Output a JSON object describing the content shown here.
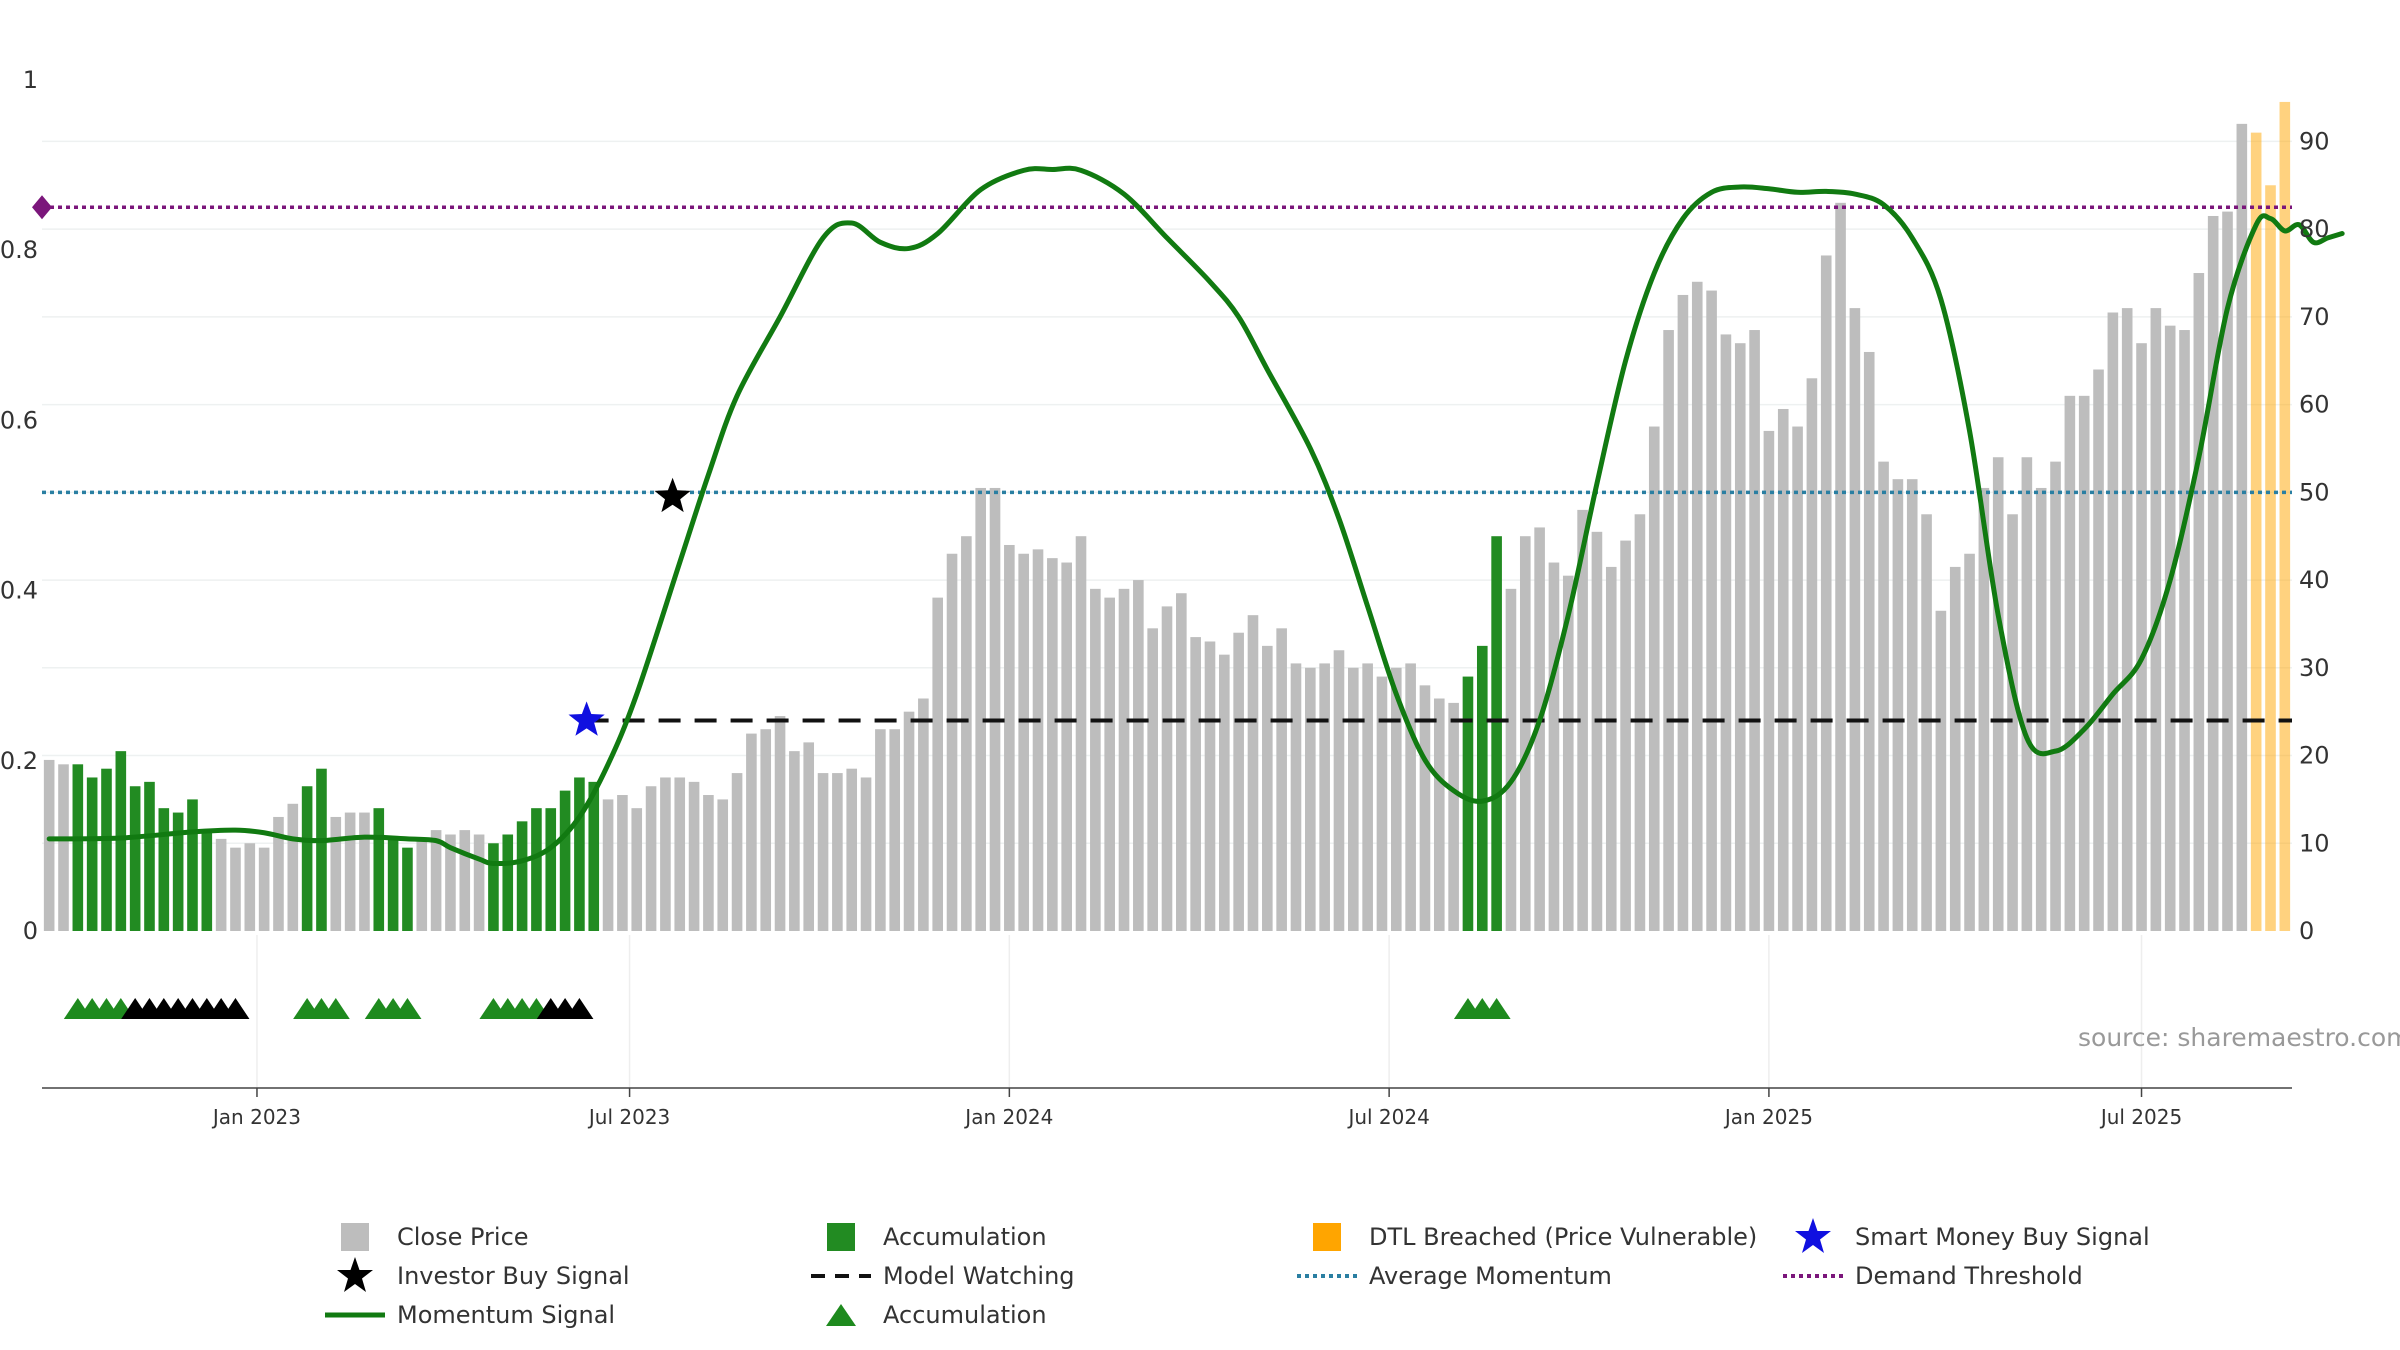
{
  "chart_data": {
    "type": "bar+line",
    "source_text": "source: sharemaestro.com",
    "x_ticks": [
      "Jan 2023",
      "Jul 2023",
      "Jan 2024",
      "Jul 2024",
      "Jan 2025",
      "Jul 2025"
    ],
    "left_axis": {
      "ylim": [
        0,
        1
      ],
      "ticks": [
        "0",
        "0.2",
        "0.4",
        "0.6",
        "0.8",
        "1"
      ]
    },
    "right_axis": {
      "ylim": [
        0,
        97
      ],
      "ticks": [
        "0",
        "10",
        "20",
        "30",
        "40",
        "50",
        "60",
        "70",
        "80",
        "90"
      ]
    },
    "close_price": [
      19.5,
      19,
      19,
      17.5,
      18.5,
      20.5,
      16.5,
      17,
      14,
      13.5,
      15,
      11.5,
      10.5,
      9.5,
      10,
      9.5,
      13,
      14.5,
      16.5,
      18.5,
      13,
      13.5,
      13.5,
      14,
      10.5,
      9.5,
      10.5,
      11.5,
      11,
      11.5,
      11,
      10,
      11,
      12.5,
      14,
      14,
      16,
      17.5,
      17,
      15,
      15.5,
      14,
      16.5,
      17.5,
      17.5,
      17,
      15.5,
      15,
      18,
      22.5,
      23,
      24.5,
      20.5,
      21.5,
      18,
      18,
      18.5,
      17.5,
      23,
      23,
      25,
      26.5,
      38,
      43,
      45,
      50.5,
      50.5,
      44,
      43,
      43.5,
      42.5,
      42,
      45,
      39,
      38,
      39,
      40,
      34.5,
      37,
      38.5,
      33.5,
      33,
      31.5,
      34,
      36,
      32.5,
      34.5,
      30.5,
      30,
      30.5,
      32,
      30,
      30.5,
      29,
      30,
      30.5,
      28,
      26.5,
      26,
      29,
      32.5,
      45,
      39,
      45,
      46,
      42,
      40.5,
      48,
      45.5,
      41.5,
      44.5,
      47.5,
      57.5,
      68.5,
      72.5,
      74,
      73,
      68,
      67,
      68.5,
      57,
      59.5,
      57.5,
      63,
      77,
      83,
      71,
      66,
      53.5,
      51.5,
      51.5,
      47.5,
      36.5,
      41.5,
      43,
      50.5,
      54,
      47.5,
      54,
      50.5,
      53.5,
      61,
      61,
      64,
      70.5,
      71,
      67,
      71,
      69,
      68.5,
      75,
      81.5,
      82,
      92,
      91,
      85,
      94.5
    ],
    "accumulation_ranges": [
      [
        2,
        11
      ],
      [
        18,
        19
      ],
      [
        23,
        25
      ],
      [
        31,
        38
      ],
      [
        99,
        101
      ]
    ],
    "dtl_breached_range": [
      154,
      157
    ],
    "momentum_signal": [
      [
        0,
        10.5
      ],
      [
        5,
        10.6
      ],
      [
        10,
        11.3
      ],
      [
        13,
        11.5
      ],
      [
        15,
        11.2
      ],
      [
        17,
        10.5
      ],
      [
        19,
        10.3
      ],
      [
        22,
        10.7
      ],
      [
        25,
        10.5
      ],
      [
        27,
        10.3
      ],
      [
        28,
        9.5
      ],
      [
        30,
        8.2
      ],
      [
        31,
        7.7
      ],
      [
        33,
        8
      ],
      [
        35,
        9.5
      ],
      [
        37,
        13
      ],
      [
        39,
        19
      ],
      [
        41,
        27
      ],
      [
        44,
        42
      ],
      [
        46,
        52
      ],
      [
        48,
        61
      ],
      [
        51,
        70
      ],
      [
        54,
        79
      ],
      [
        56,
        80.7
      ],
      [
        58,
        78.5
      ],
      [
        60,
        77.8
      ],
      [
        62,
        79.5
      ],
      [
        65,
        84.5
      ],
      [
        68,
        86.7
      ],
      [
        70,
        86.8
      ],
      [
        72,
        86.7
      ],
      [
        75,
        84
      ],
      [
        78,
        79
      ],
      [
        81,
        74
      ],
      [
        83,
        70
      ],
      [
        85,
        64
      ],
      [
        88,
        55
      ],
      [
        90,
        47
      ],
      [
        92,
        37
      ],
      [
        94,
        27
      ],
      [
        96,
        19.5
      ],
      [
        98,
        16
      ],
      [
        100,
        14.8
      ],
      [
        102,
        17
      ],
      [
        104,
        24
      ],
      [
        106,
        36
      ],
      [
        108,
        51
      ],
      [
        110,
        65
      ],
      [
        112,
        75
      ],
      [
        114,
        81.2
      ],
      [
        116,
        84.2
      ],
      [
        118,
        84.8
      ],
      [
        120,
        84.6
      ],
      [
        122,
        84.2
      ],
      [
        124,
        84.3
      ],
      [
        126,
        84
      ],
      [
        128,
        82.8
      ],
      [
        130,
        79
      ],
      [
        132,
        72
      ],
      [
        134,
        57
      ],
      [
        136,
        36
      ],
      [
        138,
        22
      ],
      [
        140,
        20.5
      ],
      [
        142,
        23
      ],
      [
        144,
        27
      ],
      [
        146,
        31
      ],
      [
        148,
        40
      ],
      [
        150,
        54
      ],
      [
        152,
        71
      ],
      [
        154,
        80.5
      ],
      [
        155,
        81.2
      ],
      [
        156,
        79.8
      ],
      [
        157,
        80.5
      ],
      [
        158,
        78.5
      ],
      [
        159,
        79
      ],
      [
        160,
        79.5
      ]
    ],
    "average_momentum": 50,
    "demand_threshold": 82.5,
    "model_watching_level": 24,
    "model_watching_start": 37.5,
    "smart_money_buy_signal": {
      "x": 37.5,
      "y": 24
    },
    "investor_buy_signal": {
      "x": 43.5,
      "y": 49.5
    },
    "accumulation_triangles": [
      2,
      3,
      4,
      5,
      18,
      19,
      20,
      23,
      24,
      25,
      31,
      32,
      33,
      34,
      99,
      100,
      101
    ],
    "investor_triangles": [
      6,
      7,
      8,
      9,
      10,
      11,
      12,
      13,
      35,
      36,
      37
    ],
    "colors": {
      "close_price": "#BDBDBD",
      "accumulation": "#228B22",
      "dtl_breached": "#FFA500",
      "momentum": "#117A11",
      "average_momentum": "#2A7FA2",
      "demand_threshold": "#7B167B",
      "model_watching": "#111111",
      "smart_money": "#1010E0",
      "investor_signal": "#000000",
      "triangle_green": "#1E8A1E",
      "triangle_black": "#000000"
    },
    "legend": [
      {
        "label": "Close Price",
        "symbol": "square",
        "color_key": "close_price"
      },
      {
        "label": "Accumulation",
        "symbol": "square",
        "color_key": "accumulation"
      },
      {
        "label": "DTL Breached (Price Vulnerable)",
        "symbol": "square",
        "color_key": "dtl_breached"
      },
      {
        "label": "Smart Money Buy Signal",
        "symbol": "star",
        "color_key": "smart_money"
      },
      {
        "label": "Investor Buy Signal",
        "symbol": "star",
        "color_key": "investor_signal"
      },
      {
        "label": "Model Watching",
        "symbol": "dash",
        "color_key": "model_watching"
      },
      {
        "label": "Average Momentum",
        "symbol": "dot",
        "color_key": "average_momentum"
      },
      {
        "label": "Demand Threshold",
        "symbol": "dot",
        "color_key": "demand_threshold"
      },
      {
        "label": "Momentum Signal",
        "symbol": "line",
        "color_key": "momentum"
      },
      {
        "label": "Accumulation",
        "symbol": "triangle",
        "color_key": "triangle_green"
      }
    ]
  }
}
